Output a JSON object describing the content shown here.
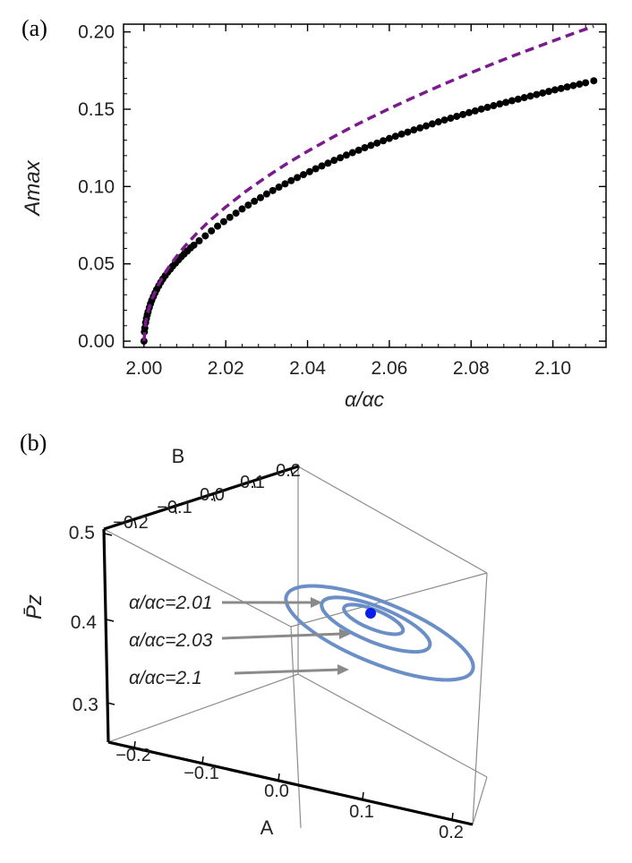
{
  "panel_a_label": "(a)",
  "panel_b_label": "(b)",
  "colors": {
    "dots": "#000000",
    "fit": "#7a1a8c",
    "loops": "#6a8fc6",
    "center_point": "#0a1ee8",
    "arrows": "#8a8a8a",
    "box": "#8c8c8c"
  },
  "chart_data": [
    {
      "panel": "(a)",
      "type": "scatter",
      "xlabel": "α/αc",
      "ylabel": "Amax",
      "xlim": [
        1.995,
        2.113
      ],
      "ylim": [
        -0.004,
        0.205
      ],
      "x_ticks": [
        "2.00",
        "2.02",
        "2.04",
        "2.06",
        "2.08",
        "2.10"
      ],
      "y_ticks": [
        "0.00",
        "0.05",
        "0.10",
        "0.15",
        "0.20"
      ],
      "series": [
        {
          "kind": "points",
          "x": [
            2.0,
            2.0001,
            2.0002,
            2.0004,
            2.0006,
            2.0008,
            2.001,
            2.0013,
            2.0016,
            2.0019,
            2.0023,
            2.0027,
            2.0031,
            2.0036,
            2.0041,
            2.0046,
            2.0052,
            2.0058,
            2.0064,
            2.007,
            2.0077,
            2.0084,
            2.0091,
            2.0098,
            2.0106,
            2.0114,
            2.0122,
            2.0135,
            2.015,
            2.0165,
            2.018,
            2.0195,
            2.021,
            2.0225,
            2.024,
            2.0255,
            2.027,
            2.0285,
            2.03,
            2.0315,
            2.033,
            2.0345,
            2.036,
            2.0375,
            2.039,
            2.0405,
            2.042,
            2.0435,
            2.045,
            2.0465,
            2.048,
            2.0495,
            2.051,
            2.0525,
            2.054,
            2.0555,
            2.057,
            2.0585,
            2.06,
            2.0615,
            2.063,
            2.0645,
            2.066,
            2.0675,
            2.069,
            2.0705,
            2.072,
            2.0735,
            2.075,
            2.0765,
            2.078,
            2.0795,
            2.081,
            2.0825,
            2.084,
            2.0855,
            2.087,
            2.0885,
            2.09,
            2.0915,
            2.093,
            2.0945,
            2.096,
            2.0975,
            2.099,
            2.1005,
            2.102,
            2.1035,
            2.105,
            2.1065,
            2.108,
            2.11
          ],
          "y": [
            0.0,
            0.006,
            0.0085,
            0.012,
            0.0147,
            0.017,
            0.019,
            0.0217,
            0.0242,
            0.0264,
            0.0288,
            0.0312,
            0.0334,
            0.0358,
            0.0381,
            0.0402,
            0.0424,
            0.0446,
            0.0465,
            0.0485,
            0.0505,
            0.0525,
            0.0545,
            0.0563,
            0.0583,
            0.0603,
            0.0621,
            0.0649,
            0.0681,
            0.0713,
            0.0744,
            0.0773,
            0.0801,
            0.0828,
            0.0855,
            0.088,
            0.0905,
            0.0928,
            0.0952,
            0.0974,
            0.0996,
            0.1017,
            0.1038,
            0.1058,
            0.1077,
            0.1096,
            0.1115,
            0.1133,
            0.1151,
            0.1169,
            0.1186,
            0.1203,
            0.1219,
            0.1235,
            0.1251,
            0.1266,
            0.1281,
            0.1296,
            0.1311,
            0.1325,
            0.1339,
            0.1352,
            0.1366,
            0.1379,
            0.1392,
            0.1405,
            0.1418,
            0.143,
            0.1442,
            0.1454,
            0.1466,
            0.1478,
            0.1489,
            0.1501,
            0.1512,
            0.1523,
            0.1534,
            0.1544,
            0.1555,
            0.1565,
            0.1575,
            0.1585,
            0.1595,
            0.1605,
            0.1615,
            0.1625,
            0.1634,
            0.1644,
            0.1653,
            0.1662,
            0.1671,
            0.1684
          ]
        },
        {
          "kind": "dashed-line",
          "x": [
            2.0,
            2.0005,
            2.001,
            2.002,
            2.003,
            2.004,
            2.005,
            2.006,
            2.008,
            2.01,
            2.013,
            2.016,
            2.02,
            2.025,
            2.03,
            2.035,
            2.04,
            2.045,
            2.05,
            2.055,
            2.06,
            2.065,
            2.07,
            2.075,
            2.08,
            2.085,
            2.09,
            2.095,
            2.1,
            2.105,
            2.11
          ],
          "y": [
            0.0,
            0.0137,
            0.0194,
            0.0275,
            0.0336,
            0.0388,
            0.0434,
            0.0476,
            0.0549,
            0.0614,
            0.07,
            0.0777,
            0.0868,
            0.0971,
            0.1063,
            0.1149,
            0.1228,
            0.1302,
            0.1373,
            0.144,
            0.1504,
            0.1565,
            0.1624,
            0.1681,
            0.1736,
            0.179,
            0.1842,
            0.1892,
            0.1941,
            0.199,
            0.2036
          ]
        }
      ]
    },
    {
      "panel": "(b)",
      "type": "line",
      "projection": "3d-box",
      "xlabel": "A",
      "ylabel": "B",
      "zlabel": "P̄z",
      "x_ticks": [
        "−0.2",
        "−0.1",
        "0.0",
        "0.1",
        "0.2"
      ],
      "y_ticks": [
        "−0.2",
        "−0.1",
        "0.0",
        "0.1",
        "0.2"
      ],
      "z_ticks": [
        "0.3",
        "0.4",
        "0.5"
      ],
      "center_point": {
        "A": 0.0,
        "B": 0.0,
        "Pz": 0.41
      },
      "series": [
        {
          "label": "α/αc=2.01",
          "amplitude": 0.06
        },
        {
          "label": "α/αc=2.03",
          "amplitude": 0.11
        },
        {
          "label": "α/αc=2.1",
          "amplitude": 0.19
        }
      ]
    }
  ]
}
